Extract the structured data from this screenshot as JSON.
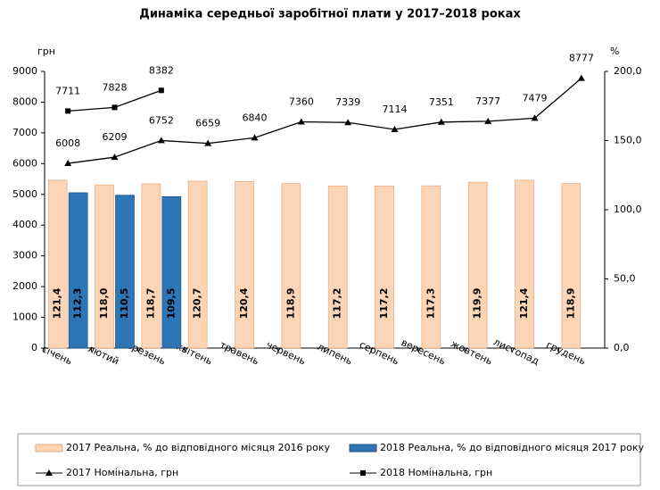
{
  "chart_data": {
    "type": "combo",
    "title": "Динаміка середньої заробітної плати у 2017–2018 роках",
    "y_label": "грн",
    "y2_label": "%",
    "categories": [
      "січень",
      "лютий",
      "березень",
      "квітень",
      "травень",
      "червень",
      "липень",
      "серпень",
      "вересень",
      "жовтень",
      "листопад",
      "грудень"
    ],
    "ylim": [
      0,
      9000
    ],
    "yticks": [
      0,
      1000,
      2000,
      3000,
      4000,
      5000,
      6000,
      7000,
      8000,
      9000
    ],
    "y2lim": [
      0,
      200
    ],
    "y2ticks": [
      {
        "value": 0,
        "label": "0,0"
      },
      {
        "value": 50,
        "label": "50,0"
      },
      {
        "value": 100,
        "label": "100,0"
      },
      {
        "value": 150,
        "label": "150,0"
      },
      {
        "value": 200,
        "label": "200,0"
      }
    ],
    "legend": "bottom",
    "series": [
      {
        "name": "2017 Реальна, % до відповідного місяця 2016 року",
        "type": "bar",
        "axis": "y2",
        "color": "#fbd5b5",
        "values": [
          121.4,
          118.0,
          118.7,
          120.7,
          120.4,
          118.9,
          117.2,
          117.2,
          117.3,
          119.9,
          121.4,
          118.9
        ],
        "value_labels": [
          "121,4",
          "118,0",
          "118,7",
          "120,7",
          "120,4",
          "118,9",
          "117,2",
          "117,2",
          "117,3",
          "119,9",
          "121,4",
          "118,9"
        ]
      },
      {
        "name": "2018 Реальна, % до відповідного місяця 2017 року",
        "type": "bar",
        "axis": "y2",
        "color": "#2e75b6",
        "values": [
          112.3,
          110.5,
          109.5,
          null,
          null,
          null,
          null,
          null,
          null,
          null,
          null,
          null
        ],
        "value_labels": [
          "112,3",
          "110,5",
          "109,5",
          null,
          null,
          null,
          null,
          null,
          null,
          null,
          null,
          null
        ]
      },
      {
        "name": "2017 Номінальна, грн",
        "type": "line",
        "marker": "triangle",
        "color": "#000000",
        "values": [
          6008,
          6209,
          6752,
          6659,
          6840,
          7360,
          7339,
          7114,
          7351,
          7377,
          7479,
          8777
        ]
      },
      {
        "name": "2018 Номінальна, грн",
        "type": "line",
        "marker": "square",
        "color": "#000000",
        "values": [
          7711,
          7828,
          8382,
          null,
          null,
          null,
          null,
          null,
          null,
          null,
          null,
          null
        ]
      }
    ]
  }
}
